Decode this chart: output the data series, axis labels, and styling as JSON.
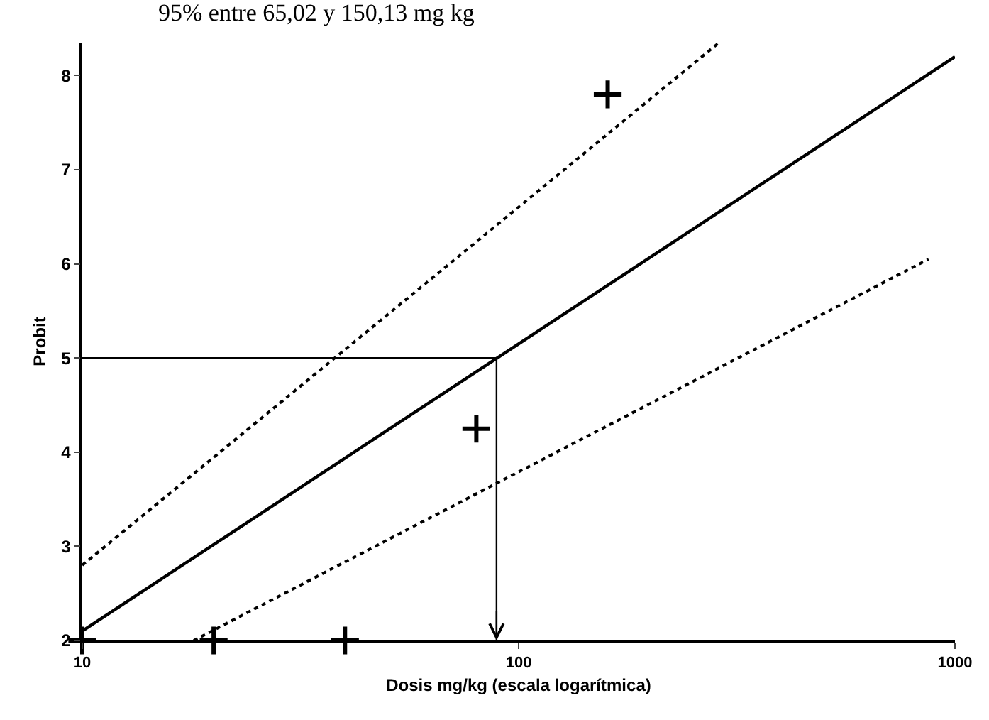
{
  "chart_data": {
    "type": "scatter",
    "title": "95% entre 65,02 y 150,13 mg kg",
    "xlabel": "Dosis mg/kg (escala logarítmica)",
    "ylabel": "Probit",
    "log": "x",
    "xlim": [
      10,
      1000
    ],
    "xticks": [
      10,
      100,
      1000
    ],
    "ylim": [
      2,
      8.35
    ],
    "yticks": [
      2,
      3,
      4,
      5,
      6,
      7,
      8
    ],
    "legend": false,
    "series": [
      {
        "type": "scatter",
        "color": "#000000",
        "marker": "cross",
        "x": [
          10,
          20,
          40,
          80,
          160
        ],
        "values": [
          2,
          2,
          2,
          4.25,
          7.8
        ]
      },
      {
        "type": "line",
        "color": "#000000",
        "line_style": "solid",
        "x": [
          10,
          1000
        ],
        "values": [
          2.1,
          8.2
        ]
      },
      {
        "type": "line",
        "color": "#000000",
        "line_style": "dotted",
        "x": [
          10,
          288
        ],
        "values": [
          2.8,
          8.35
        ]
      },
      {
        "type": "line",
        "color": "#000000",
        "line_style": "dotted",
        "x": [
          18,
          870
        ],
        "values": [
          2.0,
          6.05
        ]
      },
      {
        "type": "line",
        "color": "#000000",
        "line_style": "solid",
        "x": [
          10,
          89,
          89
        ],
        "values": [
          5,
          5,
          2
        ]
      }
    ]
  }
}
